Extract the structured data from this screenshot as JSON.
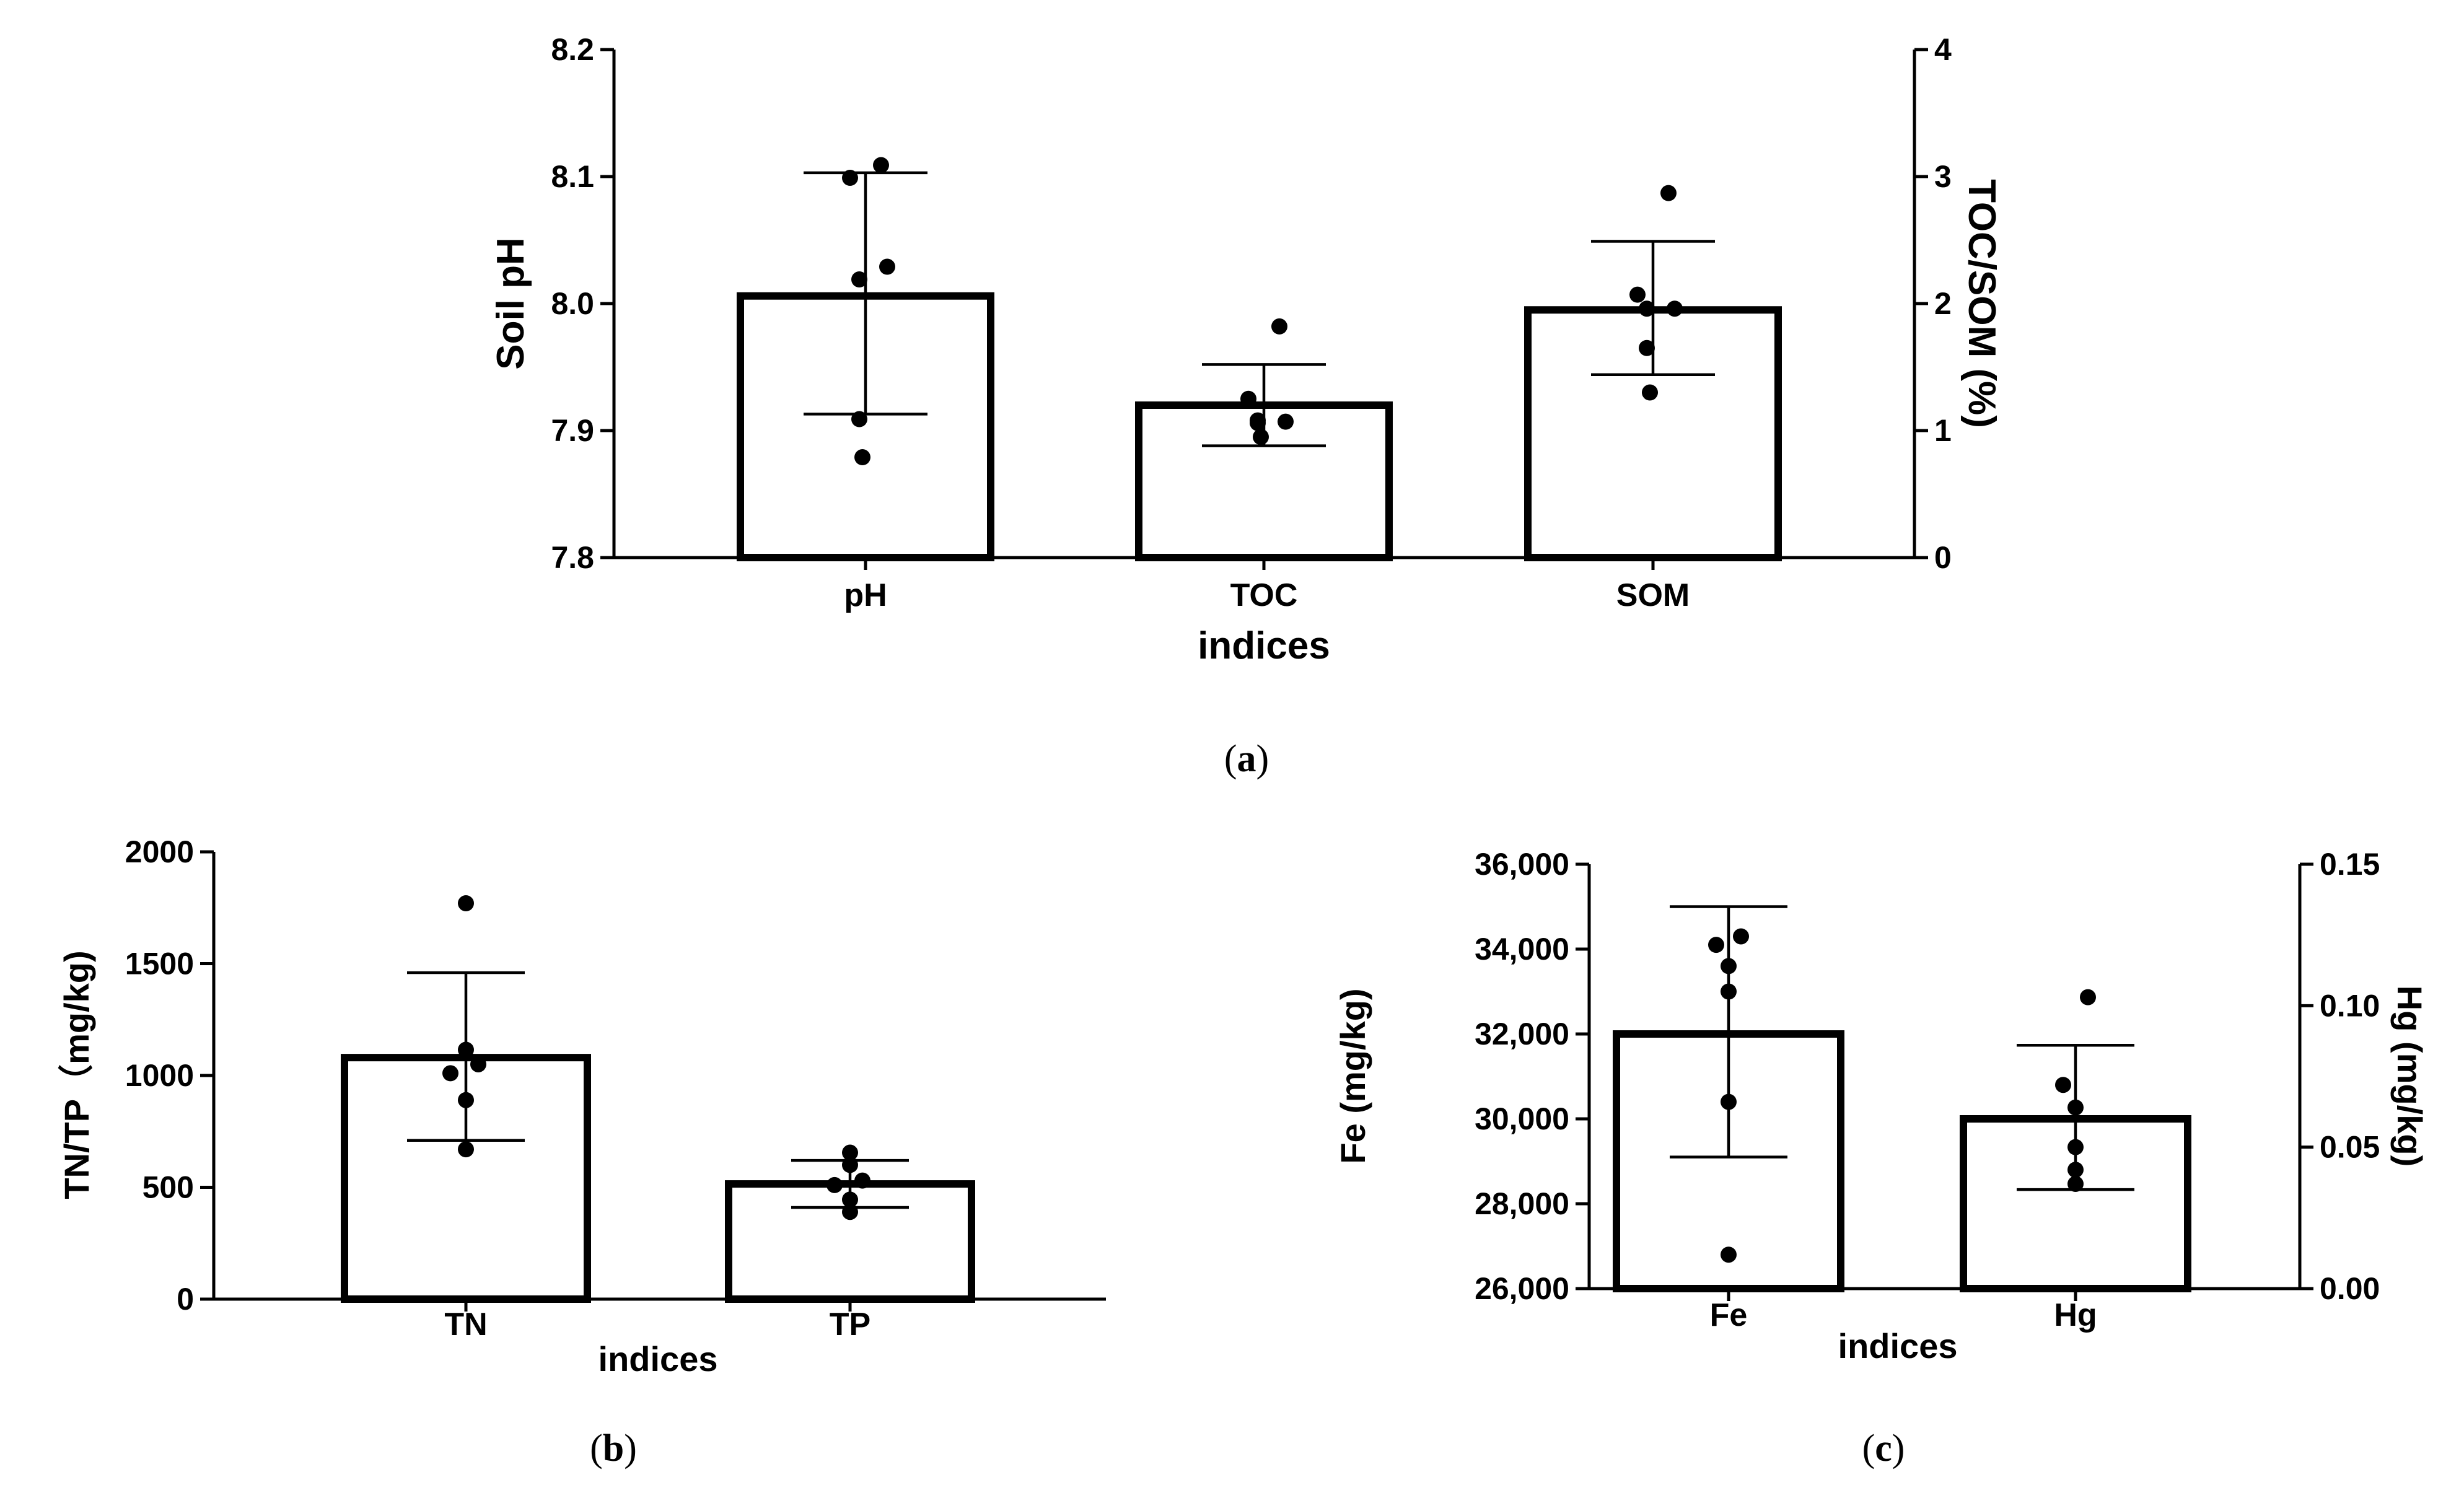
{
  "chart_data": [
    {
      "id": "a",
      "type": "bar",
      "caption_letter": "a",
      "xlabel": "indices",
      "ylabel": "Soil pH",
      "y2label": "TOC/SOM (%)",
      "ylim": [
        7.8,
        8.2
      ],
      "yticks": [
        "7.8",
        "7.9",
        "8.0",
        "8.1",
        "8.2"
      ],
      "y2lim": [
        0,
        4
      ],
      "y2ticks": [
        "0",
        "1",
        "2",
        "3",
        "4"
      ],
      "categories": [
        "pH",
        "TOC",
        "SOM"
      ],
      "bars": [
        {
          "category": "pH",
          "axis": "left",
          "mean": 8.006,
          "err_low": 7.913,
          "err_high": 8.103,
          "points": [
            8.109,
            8.099,
            8.029,
            8.019,
            7.909,
            7.879
          ]
        },
        {
          "category": "TOC",
          "axis": "right",
          "mean": 1.2,
          "err_low": 0.88,
          "err_high": 1.52,
          "points": [
            1.82,
            1.25,
            1.07,
            1.08,
            1.06,
            0.95
          ]
        },
        {
          "category": "SOM",
          "axis": "right",
          "mean": 1.95,
          "err_low": 1.44,
          "err_high": 2.49,
          "points": [
            2.87,
            2.07,
            1.96,
            1.96,
            1.65,
            1.3
          ]
        }
      ]
    },
    {
      "id": "b",
      "type": "bar",
      "caption_letter": "b",
      "xlabel": "indices",
      "ylabel": "TN/TP（mg/kg)",
      "ylim": [
        0,
        2000
      ],
      "yticks": [
        "0",
        "500",
        "1000",
        "1500",
        "2000"
      ],
      "categories": [
        "TN",
        "TP"
      ],
      "bars": [
        {
          "category": "TN",
          "axis": "left",
          "mean": 1080,
          "err_low": 710,
          "err_high": 1460,
          "points": [
            1770,
            1115,
            1050,
            1010,
            890,
            670
          ]
        },
        {
          "category": "TP",
          "axis": "left",
          "mean": 515,
          "err_low": 410,
          "err_high": 620,
          "points": [
            655,
            600,
            530,
            510,
            445,
            390
          ]
        }
      ]
    },
    {
      "id": "c",
      "type": "bar",
      "caption_letter": "c",
      "xlabel": "indices",
      "ylabel": "Fe (mg/kg)",
      "y2label": "Hg (mg/kg)",
      "ylim": [
        26000,
        36000
      ],
      "yticks": [
        "26,000",
        "28,000",
        "30,000",
        "32,000",
        "34,000",
        "36,000"
      ],
      "y2lim": [
        0,
        0.15
      ],
      "y2ticks": [
        "0.00",
        "0.05",
        "0.10",
        "0.15"
      ],
      "categories": [
        "Fe",
        "Hg"
      ],
      "bars": [
        {
          "category": "Fe",
          "axis": "left",
          "mean": 32000,
          "err_low": 29100,
          "err_high": 35000,
          "points": [
            34300,
            34100,
            33600,
            33000,
            30400,
            26800
          ]
        },
        {
          "category": "Hg",
          "axis": "right",
          "mean": 0.06,
          "err_low": 0.035,
          "err_high": 0.086,
          "points": [
            0.103,
            0.072,
            0.064,
            0.05,
            0.042,
            0.037
          ]
        }
      ]
    }
  ]
}
